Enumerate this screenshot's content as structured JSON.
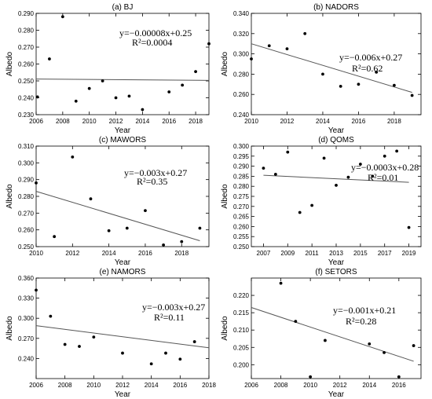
{
  "chart_data": [
    {
      "type": "scatter",
      "title": "(a) BJ",
      "xlabel": "Year",
      "ylabel": "Albedo",
      "xlim": [
        2006,
        2019
      ],
      "ylim": [
        0.23,
        0.29
      ],
      "xticks": [
        "2006",
        "2008",
        "2010",
        "2012",
        "2014",
        "2016",
        "2018"
      ],
      "yticks": [
        "0.230",
        "0.240",
        "0.250",
        "0.260",
        "0.270",
        "0.280",
        "0.290"
      ],
      "points": [
        {
          "x": 2006.1,
          "y": 0.2405
        },
        {
          "x": 2007.0,
          "y": 0.263
        },
        {
          "x": 2008.0,
          "y": 0.288
        },
        {
          "x": 2009.0,
          "y": 0.238
        },
        {
          "x": 2010.0,
          "y": 0.2455
        },
        {
          "x": 2011.0,
          "y": 0.25
        },
        {
          "x": 2012.0,
          "y": 0.24
        },
        {
          "x": 2013.0,
          "y": 0.241
        },
        {
          "x": 2014.0,
          "y": 0.233
        },
        {
          "x": 2016.0,
          "y": 0.2435
        },
        {
          "x": 2017.0,
          "y": 0.2475
        },
        {
          "x": 2018.0,
          "y": 0.2555
        },
        {
          "x": 2019.0,
          "y": 0.272
        }
      ],
      "trend": {
        "x": [
          2006,
          2019
        ],
        "y": [
          0.2511,
          0.2503
        ]
      },
      "equation": "y=−0.00008x+0.25",
      "r2": "R²=0.0004"
    },
    {
      "type": "scatter",
      "title": "(b) NADORS",
      "xlabel": "Year",
      "ylabel": "Albedo",
      "xlim": [
        2010,
        2019.5
      ],
      "ylim": [
        0.24,
        0.34
      ],
      "xticks": [
        "2010",
        "2012",
        "2014",
        "2016",
        "2018"
      ],
      "yticks": [
        "0.240",
        "0.260",
        "0.280",
        "0.300",
        "0.320",
        "0.340"
      ],
      "points": [
        {
          "x": 2010.0,
          "y": 0.295
        },
        {
          "x": 2011.0,
          "y": 0.308
        },
        {
          "x": 2012.0,
          "y": 0.305
        },
        {
          "x": 2013.0,
          "y": 0.32
        },
        {
          "x": 2014.0,
          "y": 0.28
        },
        {
          "x": 2015.0,
          "y": 0.268
        },
        {
          "x": 2016.0,
          "y": 0.27
        },
        {
          "x": 2017.0,
          "y": 0.282
        },
        {
          "x": 2018.0,
          "y": 0.269
        },
        {
          "x": 2019.0,
          "y": 0.259
        }
      ],
      "trend": {
        "x": [
          2010,
          2019
        ],
        "y": [
          0.31,
          0.262
        ]
      },
      "equation": "y=−0.006x+0.27",
      "r2": "R²=0.62"
    },
    {
      "type": "scatter",
      "title": "(c) MAWORS",
      "xlabel": "Year",
      "ylabel": "Albedo",
      "xlim": [
        2010,
        2019.5
      ],
      "ylim": [
        0.25,
        0.31
      ],
      "xticks": [
        "2010",
        "2012",
        "2014",
        "2016",
        "2018"
      ],
      "yticks": [
        "0.250",
        "0.260",
        "0.270",
        "0.280",
        "0.290",
        "0.300",
        "0.310"
      ],
      "points": [
        {
          "x": 2010.0,
          "y": 0.288
        },
        {
          "x": 2011.0,
          "y": 0.256
        },
        {
          "x": 2012.0,
          "y": 0.3035
        },
        {
          "x": 2013.0,
          "y": 0.2785
        },
        {
          "x": 2014.0,
          "y": 0.2595
        },
        {
          "x": 2015.0,
          "y": 0.261
        },
        {
          "x": 2016.0,
          "y": 0.2715
        },
        {
          "x": 2017.0,
          "y": 0.251
        },
        {
          "x": 2018.0,
          "y": 0.253
        },
        {
          "x": 2019.0,
          "y": 0.261
        }
      ],
      "trend": {
        "x": [
          2010,
          2019
        ],
        "y": [
          0.283,
          0.2535
        ]
      },
      "equation": "y=−0.003x+0.27",
      "r2": "R²=0.35"
    },
    {
      "type": "scatter",
      "title": "(d) QOMS",
      "xlabel": "Year",
      "ylabel": "Albedo",
      "xlim": [
        2006,
        2020
      ],
      "ylim": [
        0.25,
        0.3
      ],
      "xticks": [
        "2007",
        "2009",
        "2011",
        "2013",
        "2015",
        "2017",
        "2019"
      ],
      "yticks": [
        "0.250",
        "0.255",
        "0.260",
        "0.265",
        "0.270",
        "0.275",
        "0.280",
        "0.285",
        "0.290",
        "0.295",
        "0.300"
      ],
      "points": [
        {
          "x": 2007.0,
          "y": 0.289
        },
        {
          "x": 2008.0,
          "y": 0.286
        },
        {
          "x": 2009.0,
          "y": 0.297
        },
        {
          "x": 2010.0,
          "y": 0.267
        },
        {
          "x": 2011.0,
          "y": 0.2705
        },
        {
          "x": 2012.0,
          "y": 0.294
        },
        {
          "x": 2013.0,
          "y": 0.2805
        },
        {
          "x": 2014.0,
          "y": 0.2845
        },
        {
          "x": 2015.0,
          "y": 0.291
        },
        {
          "x": 2016.0,
          "y": 0.285
        },
        {
          "x": 2017.0,
          "y": 0.295
        },
        {
          "x": 2018.0,
          "y": 0.2975
        },
        {
          "x": 2019.0,
          "y": 0.2595
        }
      ],
      "trend": {
        "x": [
          2007,
          2019
        ],
        "y": [
          0.2855,
          0.282
        ]
      },
      "equation": "y=−0.0003x+0.28",
      "r2": "R²=0.01"
    },
    {
      "type": "scatter",
      "title": "(e) NAMORS",
      "xlabel": "Year",
      "ylabel": "Albedo",
      "xlim": [
        2006,
        2018
      ],
      "ylim": [
        0.21,
        0.36
      ],
      "xticks": [
        "2006",
        "2008",
        "2010",
        "2012",
        "2014",
        "2016",
        "2018"
      ],
      "yticks": [
        "0.240",
        "0.270",
        "0.300",
        "0.330",
        "0.360"
      ],
      "points": [
        {
          "x": 2006.0,
          "y": 0.342
        },
        {
          "x": 2007.0,
          "y": 0.303
        },
        {
          "x": 2008.0,
          "y": 0.261
        },
        {
          "x": 2009.0,
          "y": 0.258
        },
        {
          "x": 2010.0,
          "y": 0.272
        },
        {
          "x": 2012.0,
          "y": 0.248
        },
        {
          "x": 2014.0,
          "y": 0.232
        },
        {
          "x": 2015.0,
          "y": 0.248
        },
        {
          "x": 2016.0,
          "y": 0.239
        },
        {
          "x": 2017.0,
          "y": 0.265
        }
      ],
      "trend": {
        "x": [
          2006,
          2018
        ],
        "y": [
          0.289,
          0.256
        ]
      },
      "equation": "y=−0.003x+0.27",
      "r2": "R²=0.11"
    },
    {
      "type": "scatter",
      "title": "(f) SETORS",
      "xlabel": "Year",
      "ylabel": "Albedo",
      "xlim": [
        2006,
        2017.5
      ],
      "ylim": [
        0.196,
        0.225
      ],
      "xticks": [
        "2006",
        "2008",
        "2010",
        "2012",
        "2014",
        "2016"
      ],
      "yticks": [
        "0.200",
        "0.205",
        "0.210",
        "0.215",
        "0.220"
      ],
      "points": [
        {
          "x": 2008.0,
          "y": 0.2235
        },
        {
          "x": 2009.0,
          "y": 0.2125
        },
        {
          "x": 2010.0,
          "y": 0.1965
        },
        {
          "x": 2011.0,
          "y": 0.207
        },
        {
          "x": 2014.0,
          "y": 0.206
        },
        {
          "x": 2015.0,
          "y": 0.2035
        },
        {
          "x": 2016.0,
          "y": 0.1965
        },
        {
          "x": 2017.0,
          "y": 0.2055
        }
      ],
      "trend": {
        "x": [
          2006,
          2017
        ],
        "y": [
          0.2165,
          0.201
        ]
      },
      "equation": "y=−0.001x+0.21",
      "r2": "R²=0.28"
    }
  ]
}
